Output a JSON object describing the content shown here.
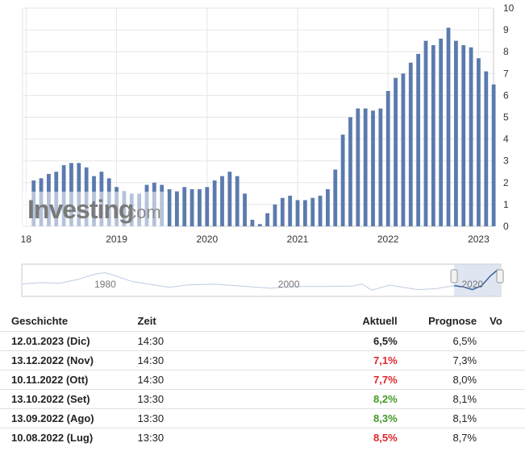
{
  "colors": {
    "bar": "#5b7bae",
    "red": "#e0262c",
    "green": "#3f9a25",
    "grid": "#e6e6e6",
    "navigator_fill": "#c9d5ea",
    "navigator_line": "#7d98c8"
  },
  "watermark": {
    "brand": "Investing",
    "suffix": ".com"
  },
  "chart_data": {
    "type": "bar",
    "ylim": [
      0,
      10
    ],
    "y_ticks": [
      "0",
      "1",
      "2",
      "3",
      "4",
      "5",
      "6",
      "7",
      "8",
      "9",
      "10"
    ],
    "x_ticks": [
      "18",
      "2019",
      "2020",
      "2021",
      "2022",
      "2023"
    ],
    "x_tick_dates": [
      "2018-01-01",
      "2019-01-01",
      "2020-01-01",
      "2021-01-01",
      "2022-01-01",
      "2023-01-01"
    ],
    "grid": true,
    "bars": [
      {
        "date": "2018-02",
        "value": 2.1
      },
      {
        "date": "2018-03",
        "value": 2.2
      },
      {
        "date": "2018-04",
        "value": 2.4
      },
      {
        "date": "2018-05",
        "value": 2.5
      },
      {
        "date": "2018-06",
        "value": 2.8
      },
      {
        "date": "2018-07",
        "value": 2.9
      },
      {
        "date": "2018-08",
        "value": 2.9
      },
      {
        "date": "2018-09",
        "value": 2.7
      },
      {
        "date": "2018-10",
        "value": 2.3
      },
      {
        "date": "2018-11",
        "value": 2.5
      },
      {
        "date": "2018-12",
        "value": 2.2
      },
      {
        "date": "2019-01",
        "value": 1.8
      },
      {
        "date": "2019-02",
        "value": 1.6
      },
      {
        "date": "2019-03",
        "value": 1.5
      },
      {
        "date": "2019-04",
        "value": 1.5
      },
      {
        "date": "2019-05",
        "value": 1.9
      },
      {
        "date": "2019-06",
        "value": 2.0
      },
      {
        "date": "2019-07",
        "value": 1.9
      },
      {
        "date": "2019-08",
        "value": 1.7
      },
      {
        "date": "2019-09",
        "value": 1.6
      },
      {
        "date": "2019-10",
        "value": 1.8
      },
      {
        "date": "2019-11",
        "value": 1.7
      },
      {
        "date": "2019-12",
        "value": 1.7
      },
      {
        "date": "2020-01",
        "value": 1.8
      },
      {
        "date": "2020-02",
        "value": 2.1
      },
      {
        "date": "2020-03",
        "value": 2.3
      },
      {
        "date": "2020-04",
        "value": 2.5
      },
      {
        "date": "2020-05",
        "value": 2.3
      },
      {
        "date": "2020-06",
        "value": 1.5
      },
      {
        "date": "2020-07",
        "value": 0.3
      },
      {
        "date": "2020-08",
        "value": 0.1
      },
      {
        "date": "2020-09",
        "value": 0.6
      },
      {
        "date": "2020-10",
        "value": 1.0
      },
      {
        "date": "2020-11",
        "value": 1.3
      },
      {
        "date": "2020-12",
        "value": 1.4
      },
      {
        "date": "2021-01",
        "value": 1.2
      },
      {
        "date": "2021-02",
        "value": 1.2
      },
      {
        "date": "2021-03",
        "value": 1.3
      },
      {
        "date": "2021-04",
        "value": 1.4
      },
      {
        "date": "2021-05",
        "value": 1.7
      },
      {
        "date": "2021-06",
        "value": 2.6
      },
      {
        "date": "2021-07",
        "value": 4.2
      },
      {
        "date": "2021-08",
        "value": 5.0
      },
      {
        "date": "2021-09",
        "value": 5.4
      },
      {
        "date": "2021-10",
        "value": 5.4
      },
      {
        "date": "2021-11",
        "value": 5.3
      },
      {
        "date": "2021-12",
        "value": 5.4
      },
      {
        "date": "2022-01",
        "value": 6.2
      },
      {
        "date": "2022-02",
        "value": 6.8
      },
      {
        "date": "2022-03",
        "value": 7.0
      },
      {
        "date": "2022-04",
        "value": 7.5
      },
      {
        "date": "2022-05",
        "value": 7.9
      },
      {
        "date": "2022-06",
        "value": 8.5
      },
      {
        "date": "2022-07",
        "value": 8.3
      },
      {
        "date": "2022-08",
        "value": 8.6
      },
      {
        "date": "2022-09",
        "value": 9.1
      },
      {
        "date": "2022-10",
        "value": 8.5
      },
      {
        "date": "2022-11",
        "value": 8.3
      },
      {
        "date": "2022-12",
        "value": 8.2
      },
      {
        "date": "2023-01",
        "value": 7.7
      },
      {
        "date": "2023-02",
        "value": 7.1
      },
      {
        "date": "2023-03",
        "value": 6.5
      }
    ]
  },
  "navigator": {
    "labels": [
      "1980",
      "2000",
      "2020"
    ],
    "label_years": [
      1980,
      2000,
      2020
    ],
    "year_range": [
      1971,
      2023
    ],
    "selected_years": [
      2018,
      2023
    ],
    "curve": [
      {
        "year": 1971,
        "value": 3.0
      },
      {
        "year": 1973,
        "value": 3.6
      },
      {
        "year": 1975,
        "value": 3.3
      },
      {
        "year": 1977,
        "value": 5.0
      },
      {
        "year": 1979,
        "value": 7.5
      },
      {
        "year": 1980,
        "value": 8.0
      },
      {
        "year": 1981,
        "value": 6.8
      },
      {
        "year": 1983,
        "value": 4.0
      },
      {
        "year": 1985,
        "value": 2.8
      },
      {
        "year": 1987,
        "value": 1.5
      },
      {
        "year": 1989,
        "value": 2.6
      },
      {
        "year": 1992,
        "value": 2.9
      },
      {
        "year": 1995,
        "value": 2.0
      },
      {
        "year": 1998,
        "value": 1.1
      },
      {
        "year": 2001,
        "value": 1.9
      },
      {
        "year": 2004,
        "value": 1.9
      },
      {
        "year": 2007,
        "value": 2.1
      },
      {
        "year": 2008,
        "value": 3.0
      },
      {
        "year": 2009,
        "value": 0.3
      },
      {
        "year": 2011,
        "value": 2.5
      },
      {
        "year": 2014,
        "value": 0.5
      },
      {
        "year": 2016,
        "value": 0.9
      },
      {
        "year": 2018,
        "value": 2.2
      },
      {
        "year": 2019,
        "value": 1.7
      },
      {
        "year": 2020,
        "value": 0.5
      },
      {
        "year": 2021,
        "value": 2.2
      },
      {
        "year": 2022,
        "value": 6.8
      },
      {
        "year": 2022.7,
        "value": 9.1
      },
      {
        "year": 2023,
        "value": 6.5
      }
    ]
  },
  "table": {
    "headers": {
      "date": "Geschichte",
      "time": "Zeit",
      "actual": "Aktuell",
      "forecast": "Prognose",
      "previous": "Vo"
    },
    "rows": [
      {
        "date": "12.01.2023 (Dic)",
        "time": "14:30",
        "actual": "6,5%",
        "actual_color": "#222222",
        "forecast": "6,5%"
      },
      {
        "date": "13.12.2022 (Nov)",
        "time": "14:30",
        "actual": "7,1%",
        "actual_color": "#e0262c",
        "forecast": "7,3%"
      },
      {
        "date": "10.11.2022 (Ott)",
        "time": "14:30",
        "actual": "7,7%",
        "actual_color": "#e0262c",
        "forecast": "8,0%"
      },
      {
        "date": "13.10.2022 (Set)",
        "time": "13:30",
        "actual": "8,2%",
        "actual_color": "#3f9a25",
        "forecast": "8,1%"
      },
      {
        "date": "13.09.2022 (Ago)",
        "time": "13:30",
        "actual": "8,3%",
        "actual_color": "#3f9a25",
        "forecast": "8,1%"
      },
      {
        "date": "10.08.2022 (Lug)",
        "time": "13:30",
        "actual": "8,5%",
        "actual_color": "#e0262c",
        "forecast": "8,7%"
      }
    ]
  }
}
